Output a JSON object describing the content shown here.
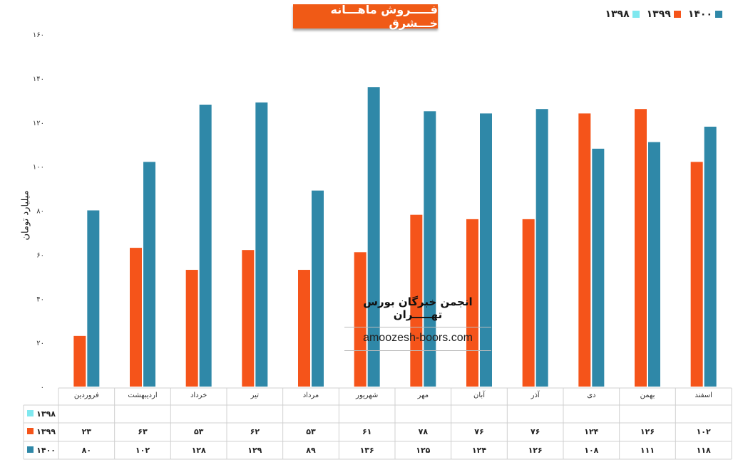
{
  "title": "فـــــروش ماهـــانه خـــشرق",
  "ylabel": "میلیارد تومان",
  "watermark": {
    "title": "انجمن خبرگان بورس تهـــــران",
    "site": "amoozesh-boors.com"
  },
  "colors": {
    "1398": "#7fe8ef",
    "1399": "#f5541a",
    "1400": "#2f88a8"
  },
  "chart_data": {
    "type": "bar",
    "categories": [
      "فروردین",
      "اردیبهشت",
      "خرداد",
      "تیر",
      "مرداد",
      "شهریور",
      "مهر",
      "آبان",
      "آذر",
      "دی",
      "بهمن",
      "اسفند"
    ],
    "series": [
      {
        "name": "۱۳۹۸",
        "values": [
          null,
          null,
          null,
          null,
          null,
          null,
          null,
          null,
          null,
          null,
          null,
          null
        ],
        "labels": [
          "",
          "",
          "",
          "",
          "",
          "",
          "",
          "",
          "",
          "",
          "",
          ""
        ]
      },
      {
        "name": "۱۳۹۹",
        "values": [
          23,
          63,
          53,
          62,
          53,
          61,
          78,
          76,
          76,
          124,
          126,
          102
        ],
        "labels": [
          "۲۳",
          "۶۳",
          "۵۳",
          "۶۲",
          "۵۳",
          "۶۱",
          "۷۸",
          "۷۶",
          "۷۶",
          "۱۲۴",
          "۱۲۶",
          "۱۰۲"
        ]
      },
      {
        "name": "۱۴۰۰",
        "values": [
          80,
          102,
          128,
          129,
          89,
          136,
          125,
          124,
          126,
          108,
          111,
          118
        ],
        "labels": [
          "۸۰",
          "۱۰۲",
          "۱۲۸",
          "۱۲۹",
          "۸۹",
          "۱۳۶",
          "۱۲۵",
          "۱۲۴",
          "۱۲۶",
          "۱۰۸",
          "۱۱۱",
          "۱۱۸"
        ]
      }
    ],
    "ylim": [
      0,
      160
    ],
    "yticks": [
      0,
      20,
      40,
      60,
      80,
      100,
      120,
      140,
      160
    ],
    "ytick_labels": [
      "۰",
      "۲۰",
      "۴۰",
      "۶۰",
      "۸۰",
      "۱۰۰",
      "۱۲۰",
      "۱۴۰",
      "۱۶۰"
    ],
    "legend": "top-right",
    "data_table": true
  }
}
